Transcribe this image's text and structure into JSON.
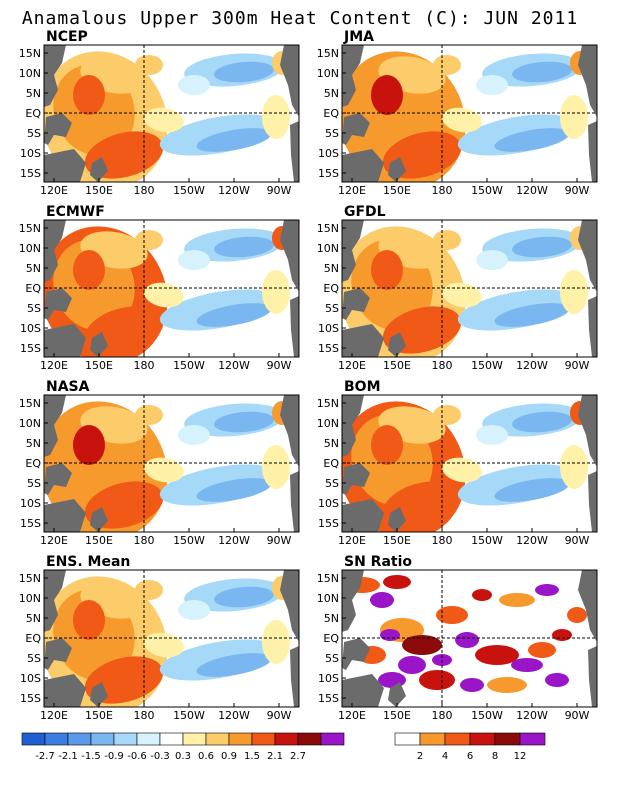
{
  "title": "Anamalous Upper 300m Heat Content (C): JUN 2011",
  "lat_labels": [
    "15N",
    "10N",
    "5N",
    "EQ",
    "5S",
    "10S",
    "15S"
  ],
  "lon_labels": [
    "120E",
    "150E",
    "180",
    "150W",
    "120W",
    "90W"
  ],
  "panels": [
    {
      "name": "NCEP"
    },
    {
      "name": "JMA"
    },
    {
      "name": "ECMWF"
    },
    {
      "name": "GFDL"
    },
    {
      "name": "NASA"
    },
    {
      "name": "BOM"
    },
    {
      "name": "ENS. Mean"
    },
    {
      "name": "SN Ratio"
    }
  ],
  "anomaly_colorbar": {
    "colors": [
      "#1f5fd0",
      "#3b7de0",
      "#5a9ae8",
      "#7ab6f0",
      "#a6d8f8",
      "#d6f2fc",
      "#ffffff",
      "#fff1a8",
      "#fccc6a",
      "#f79a2e",
      "#f05a16",
      "#c8120e",
      "#8c0a0a",
      "#9a14c8"
    ],
    "labels": [
      "-2.7",
      "-2.1",
      "-1.5",
      "-0.9",
      "-0.6",
      "-0.3",
      "0.3",
      "0.6",
      "0.9",
      "1.5",
      "2.1",
      "2.7"
    ]
  },
  "sn_colorbar": {
    "colors": [
      "#ffffff",
      "#f79a2e",
      "#f05a16",
      "#c8120e",
      "#8c0a0a",
      "#9a14c8"
    ],
    "labels": [
      "2",
      "4",
      "6",
      "8",
      "12"
    ]
  },
  "colors": {
    "land": "#6b6b6b",
    "ocean": "#ffffff"
  }
}
